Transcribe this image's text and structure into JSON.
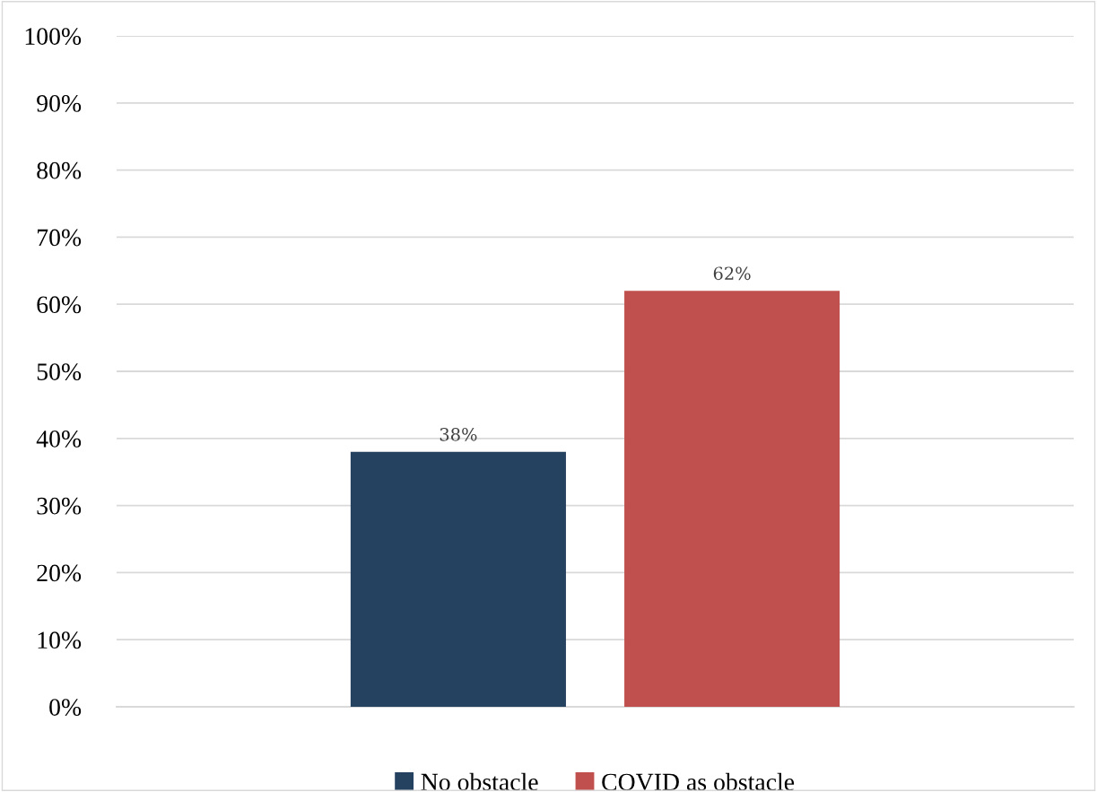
{
  "chart_data": {
    "type": "bar",
    "categories": [
      null
    ],
    "series": [
      {
        "name": "No obstacle",
        "color": "#264261",
        "values": [
          38
        ],
        "value_labels": [
          "38%"
        ]
      },
      {
        "name": "COVID as obstacle",
        "color": "#c0504d",
        "values": [
          62
        ],
        "value_labels": [
          "62%"
        ]
      }
    ],
    "ylim": [
      0,
      100
    ],
    "yticks": [
      {
        "value": 0,
        "label": "0%"
      },
      {
        "value": 10,
        "label": "10%"
      },
      {
        "value": 20,
        "label": "20%"
      },
      {
        "value": 30,
        "label": "30%"
      },
      {
        "value": 40,
        "label": "40%"
      },
      {
        "value": 50,
        "label": "50%"
      },
      {
        "value": 60,
        "label": "60%"
      },
      {
        "value": 70,
        "label": "70%"
      },
      {
        "value": 80,
        "label": "80%"
      },
      {
        "value": 90,
        "label": "90%"
      },
      {
        "value": 100,
        "label": "100%"
      }
    ],
    "grid": "y",
    "legend": "bottom"
  }
}
